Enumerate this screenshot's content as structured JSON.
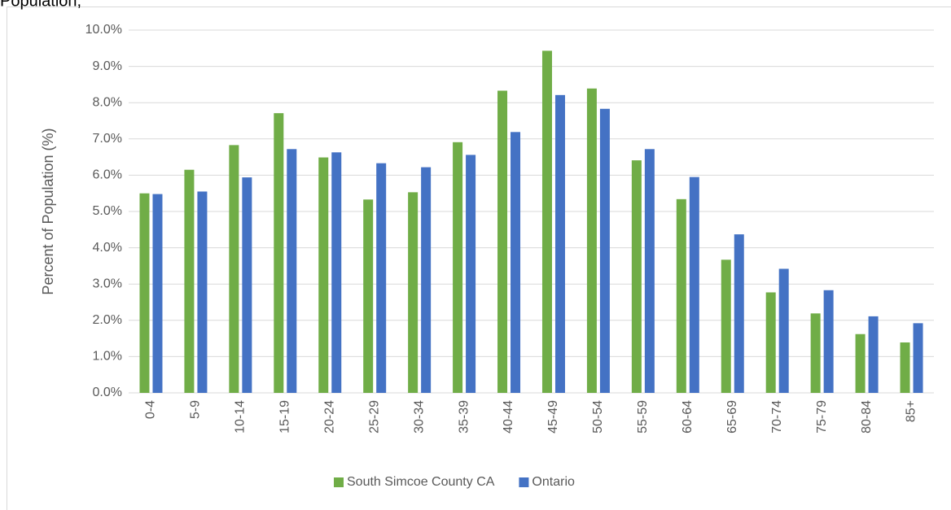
{
  "chart_data": {
    "type": "bar",
    "title": "Population,",
    "y_label": "Percent of Population (%)",
    "categories": [
      "0-4",
      "5-9",
      "10-14",
      "15-19",
      "20-24",
      "25-29",
      "30-34",
      "35-39",
      "40-44",
      "45-49",
      "50-54",
      "55-59",
      "60-64",
      "65-69",
      "70-74",
      "75-79",
      "80-84",
      "85+"
    ],
    "series": [
      {
        "name": "South Simcoe County CA",
        "color": "#70ad47",
        "values": [
          5.5,
          6.15,
          6.83,
          7.71,
          6.49,
          5.33,
          5.53,
          6.91,
          8.33,
          9.43,
          8.39,
          6.41,
          5.34,
          3.67,
          2.77,
          2.19,
          1.62,
          1.39
        ]
      },
      {
        "name": "Ontario",
        "color": "#4472c4",
        "values": [
          5.48,
          5.55,
          5.94,
          6.72,
          6.63,
          6.33,
          6.22,
          6.56,
          7.19,
          8.21,
          7.83,
          6.72,
          5.95,
          4.37,
          3.42,
          2.83,
          2.11,
          1.92
        ]
      }
    ],
    "ylim": [
      0,
      10
    ],
    "yticks": [
      {
        "value": 0,
        "label": "0.0%"
      },
      {
        "value": 1,
        "label": "1.0%"
      },
      {
        "value": 2,
        "label": "2.0%"
      },
      {
        "value": 3,
        "label": "3.0%"
      },
      {
        "value": 4,
        "label": "4.0%"
      },
      {
        "value": 5,
        "label": "5.0%"
      },
      {
        "value": 6,
        "label": "6.0%"
      },
      {
        "value": 7,
        "label": "7.0%"
      },
      {
        "value": 8,
        "label": "8.0%"
      },
      {
        "value": 9,
        "label": "9.0%"
      },
      {
        "value": 10,
        "label": "10.0%"
      }
    ],
    "grid": true,
    "legend": "bottom"
  }
}
